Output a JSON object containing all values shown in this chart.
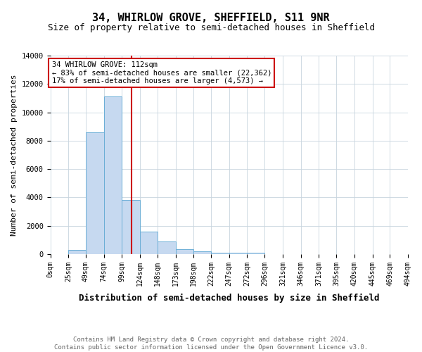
{
  "title": "34, WHIRLOW GROVE, SHEFFIELD, S11 9NR",
  "subtitle": "Size of property relative to semi-detached houses in Sheffield",
  "xlabel": "Distribution of semi-detached houses by size in Sheffield",
  "ylabel": "Number of semi-detached properties",
  "footnote1": "Contains HM Land Registry data © Crown copyright and database right 2024.",
  "footnote2": "Contains public sector information licensed under the Open Government Licence v3.0.",
  "bin_labels": [
    "0sqm",
    "25sqm",
    "49sqm",
    "74sqm",
    "99sqm",
    "124sqm",
    "148sqm",
    "173sqm",
    "198sqm",
    "222sqm",
    "247sqm",
    "272sqm",
    "296sqm",
    "321sqm",
    "346sqm",
    "371sqm",
    "395sqm",
    "420sqm",
    "445sqm",
    "469sqm",
    "494sqm"
  ],
  "bin_edges": [
    0,
    25,
    49,
    74,
    99,
    124,
    148,
    173,
    198,
    222,
    247,
    272,
    296,
    321,
    346,
    371,
    395,
    420,
    445,
    469,
    494
  ],
  "bar_heights": [
    0,
    300,
    8600,
    11100,
    3800,
    1600,
    900,
    350,
    200,
    100,
    100,
    100,
    0,
    0,
    0,
    0,
    0,
    0,
    0,
    0
  ],
  "bar_color": "#c6d9f0",
  "bar_edge_color": "#6baed6",
  "property_size": 112,
  "vline_color": "#cc0000",
  "annotation_line1": "34 WHIRLOW GROVE: 112sqm",
  "annotation_line2": "← 83% of semi-detached houses are smaller (22,362)",
  "annotation_line3": "17% of semi-detached houses are larger (4,573) →",
  "annotation_box_color": "#ffffff",
  "annotation_box_edge_color": "#cc0000",
  "ylim": [
    0,
    14000
  ],
  "xlim": [
    0,
    494
  ],
  "bg_color": "#ffffff",
  "grid_color": "#c8d4de",
  "title_fontsize": 11,
  "subtitle_fontsize": 9,
  "xlabel_fontsize": 9,
  "ylabel_fontsize": 8,
  "tick_fontsize": 7,
  "annotation_fontsize": 7.5,
  "footnote_fontsize": 6.5,
  "yticks": [
    0,
    2000,
    4000,
    6000,
    8000,
    10000,
    12000,
    14000
  ]
}
